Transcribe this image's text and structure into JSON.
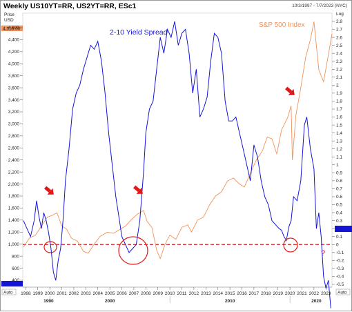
{
  "header": {
    "title": "Weekly US10YT=RR, US2YT=RR, ESc1",
    "date_range": "10/3/1997 - 7/7/2023 (NYC)"
  },
  "left_axis": {
    "header_line1": "Price",
    "header_line2": "USD",
    "current_value_badge": "4,515.00",
    "ticks": [
      "4,600",
      "4,400",
      "4,200",
      "4,000",
      "3,800",
      "3,600",
      "3,400",
      "3,200",
      "3,000",
      "2,800",
      "2,600",
      "2,400",
      "2,200",
      "2,000",
      "1,800",
      "1,600",
      "1,400",
      "1,200",
      "1,000",
      "800",
      "600",
      "400"
    ]
  },
  "right_axis": {
    "header": "Log",
    "ticks": [
      "2.8",
      "2.7",
      "2.6",
      "2.5",
      "2.4",
      "2.3",
      "2.2",
      "2.1",
      "2",
      "1.9",
      "1.8",
      "1.7",
      "1.6",
      "1.5",
      "1.4",
      "1.3",
      "1.2",
      "1.1",
      "1",
      "0.9",
      "0.8",
      "0.7",
      "0.6",
      "0.5",
      "0.4",
      "0.3",
      "0.2",
      "0.1",
      "0",
      "-0.1",
      "-0.2",
      "-0.3",
      "-0.4",
      "-0.5"
    ]
  },
  "x_axis": {
    "year_ticks": [
      "1998",
      "1999",
      "2000",
      "2001",
      "2002",
      "2003",
      "2004",
      "2005",
      "2006",
      "2007",
      "2008",
      "2009",
      "2010",
      "2011",
      "2012",
      "2013",
      "2014",
      "2015",
      "2016",
      "2017",
      "2018",
      "2019",
      "2020",
      "2021",
      "2022",
      "2023"
    ],
    "decade_labels": [
      "1990",
      "2000",
      "2010",
      "2020"
    ]
  },
  "auto_labels": [
    "Auto",
    "Auto"
  ],
  "annotations": {
    "spread_label": "2-10 Yield Spread",
    "sp500_label": "S&P 500 Index",
    "question_mark": "?"
  },
  "colors": {
    "spread": "#1515d6",
    "sp500": "#f0925a",
    "arrow": "#e01818",
    "circle": "#e01818",
    "zero_line": "#e01818",
    "badge_bg": "#1515d6"
  },
  "chart_data": {
    "type": "line",
    "title": "Weekly US10YT=RR, US2YT=RR, ESc1",
    "x_range": [
      1997.75,
      2023.5
    ],
    "left_ylim": [
      350,
      4700
    ],
    "right_ylim": [
      -0.5,
      2.85
    ],
    "series": [
      {
        "name": "2-10 Yield Spread",
        "axis": "right",
        "x": [
          1997.8,
          1998.1,
          1998.4,
          1998.7,
          1998.9,
          1999.1,
          1999.3,
          1999.5,
          1999.7,
          1999.9,
          2000.1,
          2000.3,
          2000.5,
          2000.7,
          2000.9,
          2001.1,
          2001.3,
          2001.6,
          2001.9,
          2002.2,
          2002.5,
          2002.8,
          2003.1,
          2003.4,
          2003.7,
          2004.0,
          2004.3,
          2004.6,
          2004.9,
          2005.2,
          2005.5,
          2005.8,
          2006.0,
          2006.3,
          2006.6,
          2006.9,
          2007.2,
          2007.5,
          2007.8,
          2008.0,
          2008.3,
          2008.6,
          2008.9,
          2009.2,
          2009.5,
          2009.8,
          2010.1,
          2010.4,
          2010.7,
          2011.0,
          2011.3,
          2011.6,
          2011.9,
          2012.2,
          2012.5,
          2012.8,
          2013.1,
          2013.4,
          2013.7,
          2014.0,
          2014.3,
          2014.6,
          2014.9,
          2015.2,
          2015.5,
          2015.8,
          2016.1,
          2016.4,
          2016.7,
          2017.0,
          2017.3,
          2017.6,
          2017.9,
          2018.2,
          2018.5,
          2018.8,
          2019.1,
          2019.3,
          2019.5,
          2019.7,
          2019.9,
          2020.1,
          2020.3,
          2020.6,
          2020.9,
          2021.2,
          2021.4,
          2021.7,
          2022.0,
          2022.2,
          2022.4,
          2022.6,
          2022.8,
          2023.0,
          2023.2,
          2023.4
        ],
        "values": [
          0.3,
          0.2,
          0.1,
          0.3,
          0.55,
          0.35,
          0.2,
          0.4,
          0.3,
          0.15,
          -0.05,
          -0.35,
          -0.45,
          -0.2,
          -0.05,
          0.3,
          0.8,
          1.2,
          1.7,
          1.9,
          2.0,
          2.2,
          2.35,
          2.5,
          2.45,
          2.55,
          2.3,
          1.9,
          1.4,
          1.0,
          0.6,
          0.3,
          0.1,
          0.0,
          -0.1,
          -0.05,
          0.0,
          0.3,
          0.9,
          1.4,
          1.7,
          1.8,
          2.2,
          2.6,
          2.4,
          2.7,
          2.6,
          2.8,
          2.5,
          2.65,
          2.7,
          2.4,
          1.9,
          2.2,
          1.6,
          1.7,
          1.85,
          2.3,
          2.65,
          2.6,
          2.4,
          1.8,
          1.55,
          1.55,
          1.6,
          1.4,
          1.2,
          1.0,
          0.8,
          1.25,
          1.1,
          0.8,
          0.6,
          0.5,
          0.3,
          0.25,
          0.2,
          0.18,
          0.1,
          0.05,
          0.22,
          0.3,
          0.6,
          0.55,
          0.8,
          1.5,
          1.6,
          1.2,
          0.95,
          0.2,
          0.4,
          0.1,
          -0.4,
          -0.55,
          -0.45,
          -0.8
        ]
      },
      {
        "name": "S&P 500 Index",
        "axis": "left",
        "x": [
          1997.8,
          1998.3,
          1998.8,
          1999.3,
          1999.8,
          2000.2,
          2000.6,
          2001.0,
          2001.4,
          2001.8,
          2002.3,
          2002.8,
          2003.2,
          2003.7,
          2004.2,
          2004.8,
          2005.3,
          2005.8,
          2006.3,
          2006.8,
          2007.3,
          2007.8,
          2008.1,
          2008.5,
          2008.9,
          2009.2,
          2009.6,
          2010.0,
          2010.5,
          2011.0,
          2011.5,
          2011.8,
          2012.3,
          2012.8,
          2013.3,
          2013.8,
          2014.3,
          2014.8,
          2015.3,
          2015.8,
          2016.2,
          2016.7,
          2017.2,
          2017.7,
          2018.1,
          2018.5,
          2018.9,
          2019.3,
          2019.8,
          2020.1,
          2020.2,
          2020.5,
          2020.9,
          2021.3,
          2021.7,
          2022.0,
          2022.4,
          2022.8,
          2023.2,
          2023.5
        ],
        "values": [
          950,
          1100,
          1150,
          1300,
          1450,
          1480,
          1520,
          1300,
          1250,
          1100,
          1050,
          880,
          850,
          1000,
          1130,
          1200,
          1180,
          1240,
          1300,
          1410,
          1500,
          1560,
          1380,
          1280,
          900,
          760,
          1000,
          1150,
          1080,
          1280,
          1320,
          1200,
          1400,
          1450,
          1650,
          1800,
          1870,
          2050,
          2100,
          2000,
          1950,
          2180,
          2400,
          2550,
          2780,
          2750,
          2500,
          2900,
          3100,
          3300,
          2400,
          3150,
          3600,
          4100,
          4400,
          4700,
          3900,
          3700,
          4150,
          4500
        ]
      }
    ],
    "annotations": [
      {
        "text": "2-10 Yield Spread",
        "series": "2-10 Yield Spread"
      },
      {
        "text": "S&P 500 Index",
        "series": "S&P 500 Index"
      },
      {
        "text": "?"
      }
    ]
  }
}
